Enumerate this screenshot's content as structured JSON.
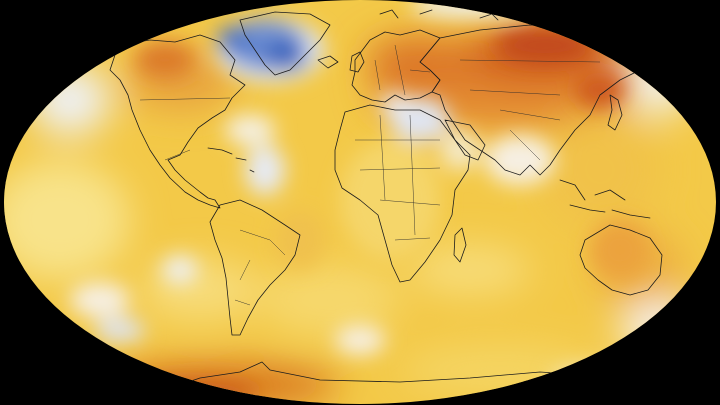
{
  "map": {
    "projection": "robinson",
    "colors": {
      "background": "#000000",
      "base_warm": "#f3c948",
      "light_warm": "#f8e38a",
      "neutral": "#f4f0e4",
      "strong_warm": "#d8641e",
      "very_strong_warm": "#c2481a",
      "cool_light": "#dfe6f4",
      "cool_strong": "#3d66be",
      "coastline": "#1c1c1c"
    }
  }
}
